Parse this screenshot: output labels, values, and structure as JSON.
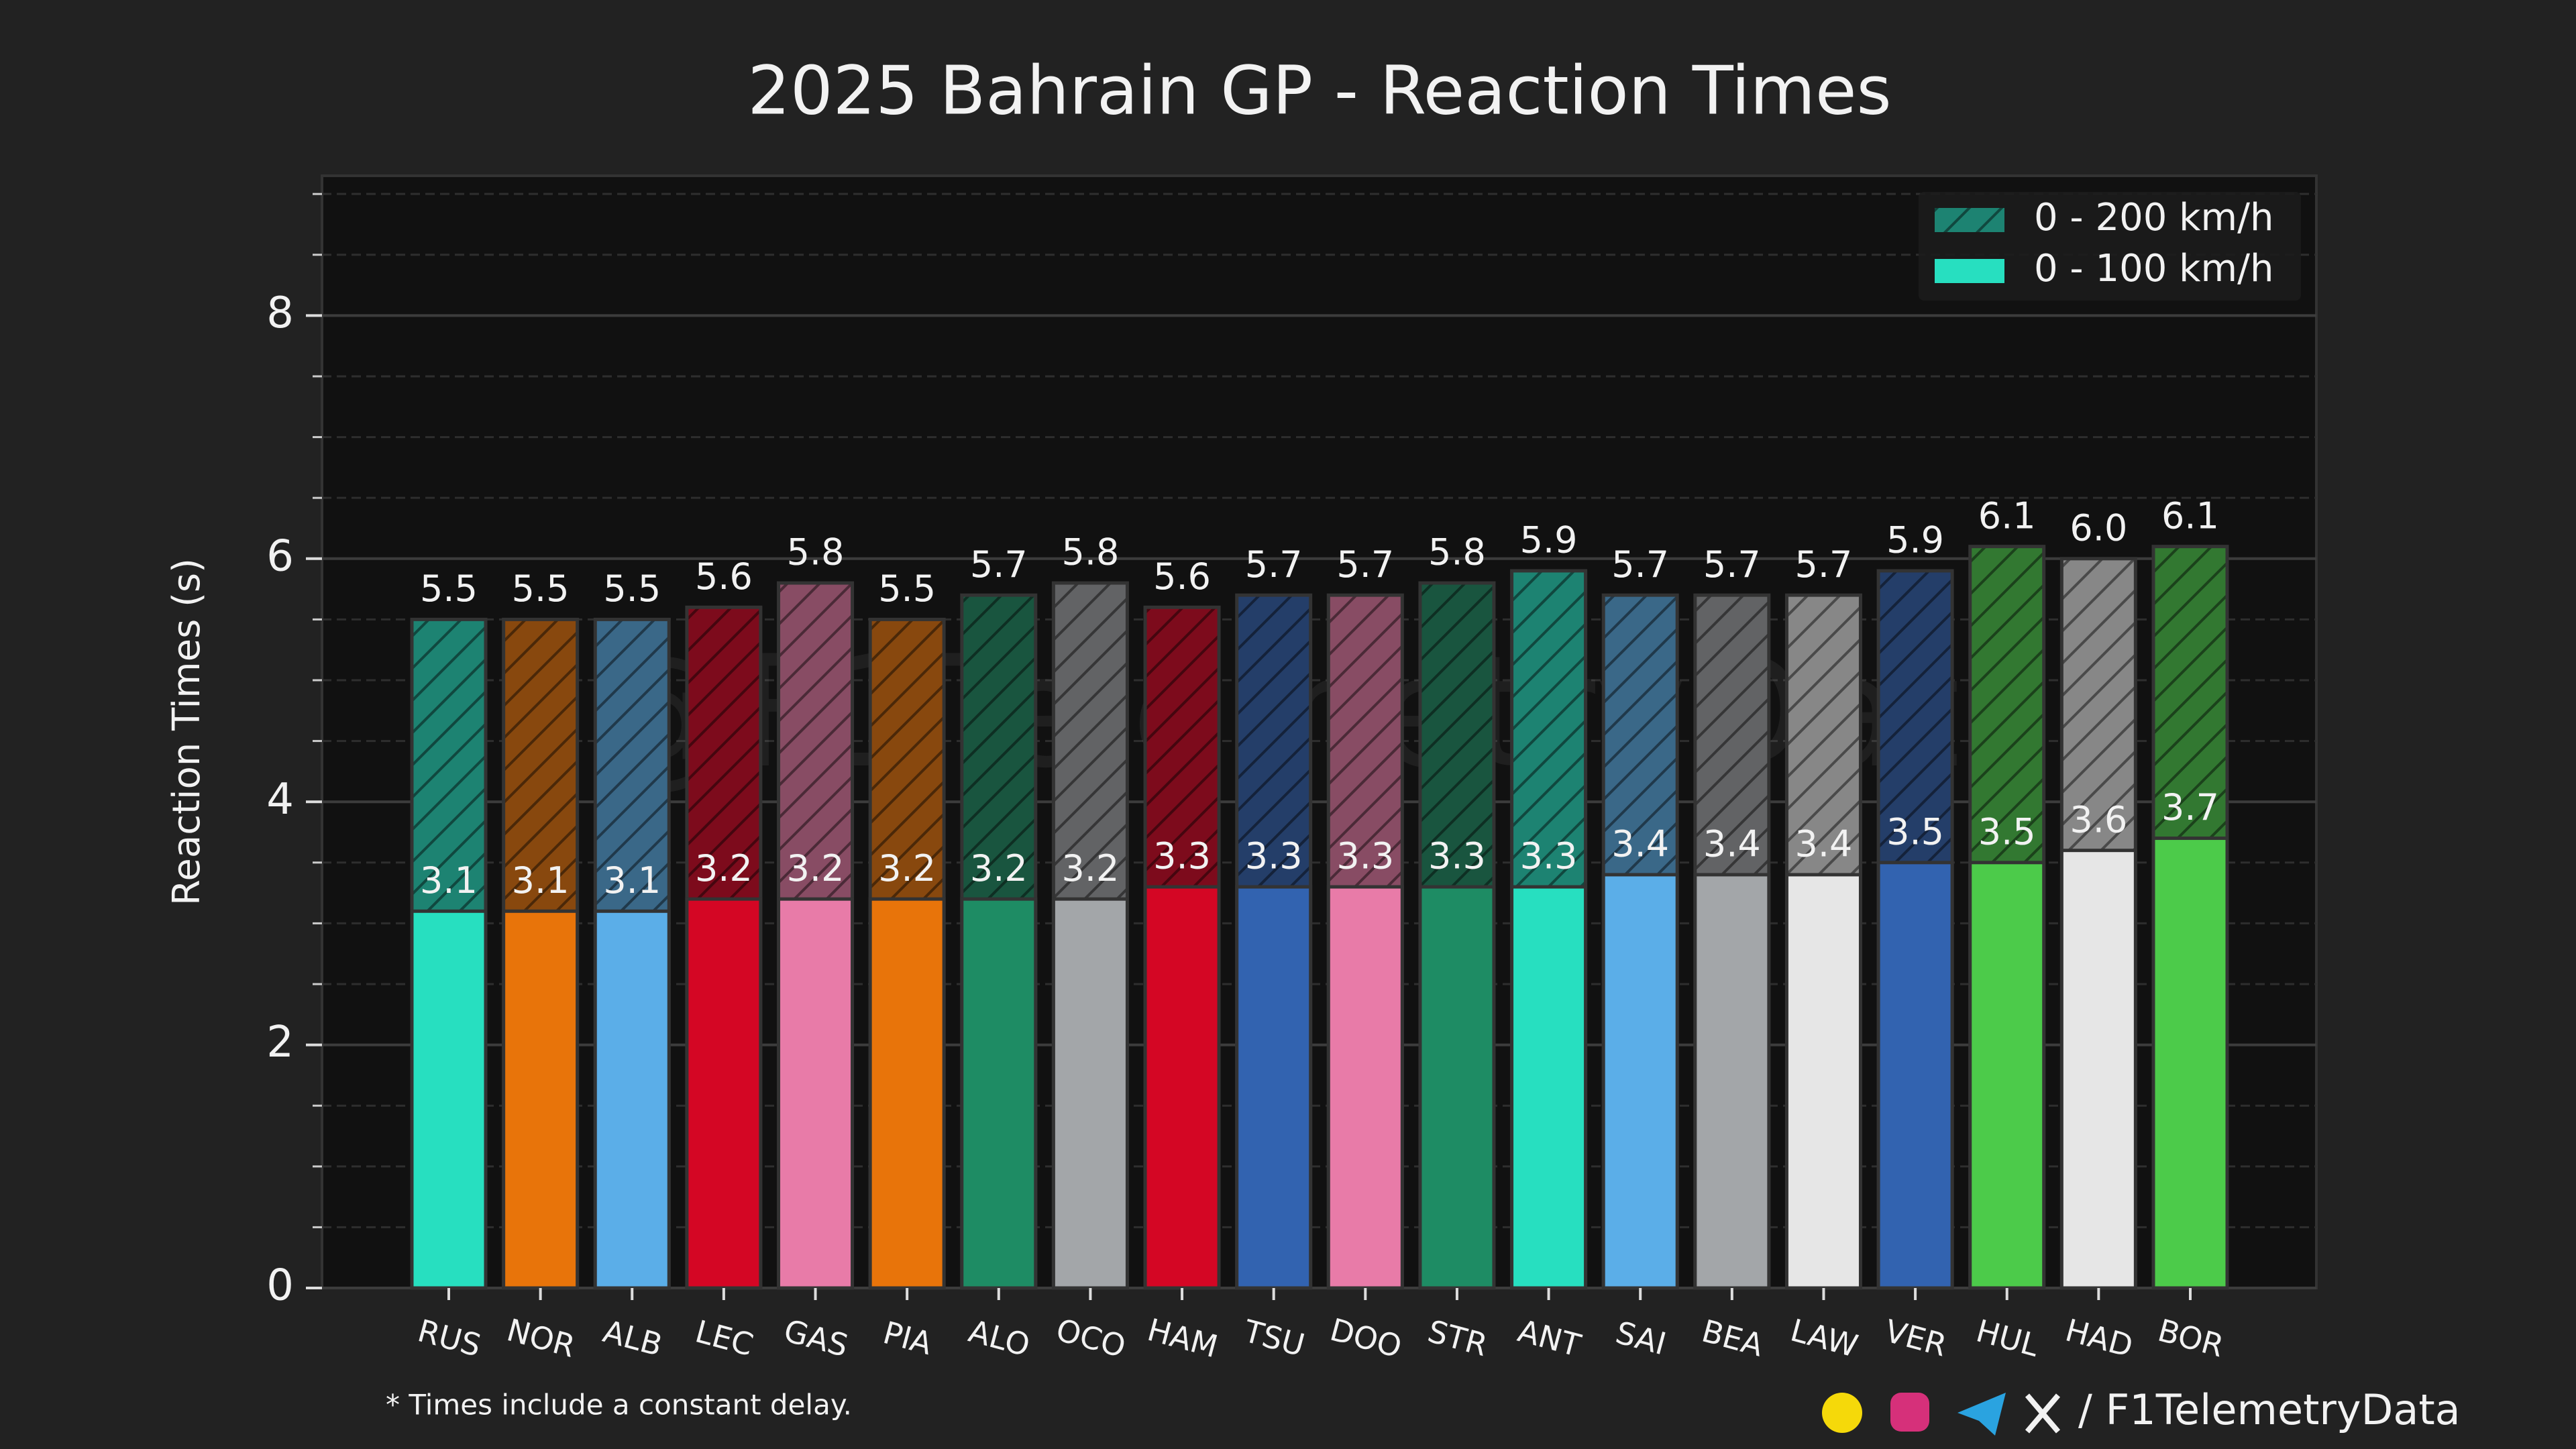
{
  "chart_data": {
    "type": "bar",
    "title": "2025 Bahrain GP - Reaction Times",
    "y_label": "Reaction Times (s)",
    "watermark": "@F1TelemetryData",
    "footnote": "* Times include a constant delay.",
    "credit": "/ F1TelemetryData",
    "categories": [
      "RUS",
      "NOR",
      "ALB",
      "LEC",
      "GAS",
      "PIA",
      "ALO",
      "OCO",
      "HAM",
      "TSU",
      "DOO",
      "STR",
      "ANT",
      "SAI",
      "BEA",
      "LAW",
      "VER",
      "HUL",
      "HAD",
      "BOR"
    ],
    "colors": [
      "#27dfc0",
      "#e8740a",
      "#5baee8",
      "#d40624",
      "#e87ba8",
      "#e8740a",
      "#1e8c64",
      "#a3a6a9",
      "#d40624",
      "#3263b0",
      "#e87ba8",
      "#1e8c64",
      "#27dfc0",
      "#5baee8",
      "#a3a6a9",
      "#e6e6e6",
      "#3263b0",
      "#4ccb4a",
      "#e6e6e6",
      "#4ccb4a"
    ],
    "series": [
      {
        "name": "0 - 200 km/h",
        "color": "#27dfc0",
        "hatch": true,
        "values": [
          5.5,
          5.5,
          5.5,
          5.6,
          5.8,
          5.5,
          5.7,
          5.8,
          5.6,
          5.7,
          5.7,
          5.8,
          5.9,
          5.7,
          5.7,
          5.7,
          5.9,
          6.1,
          6.0,
          6.1
        ],
        "value_labels": [
          "5.5",
          "5.5",
          "5.5",
          "5.6",
          "5.8",
          "5.5",
          "5.7",
          "5.8",
          "5.6",
          "5.7",
          "5.7",
          "5.8",
          "5.9",
          "5.7",
          "5.7",
          "5.7",
          "5.9",
          "6.1",
          "6.0",
          "6.1"
        ]
      },
      {
        "name": "0 - 100 km/h",
        "color": "#27dfc0",
        "hatch": false,
        "values": [
          3.1,
          3.1,
          3.1,
          3.2,
          3.2,
          3.2,
          3.2,
          3.2,
          3.3,
          3.3,
          3.3,
          3.3,
          3.3,
          3.4,
          3.4,
          3.4,
          3.5,
          3.5,
          3.6,
          3.7
        ]
      }
    ],
    "ylim": [
      0,
      9.15
    ],
    "yticks": [
      0,
      2,
      4,
      6,
      8
    ],
    "minor_step": 0.5,
    "grid": true,
    "legend": "upper right"
  }
}
